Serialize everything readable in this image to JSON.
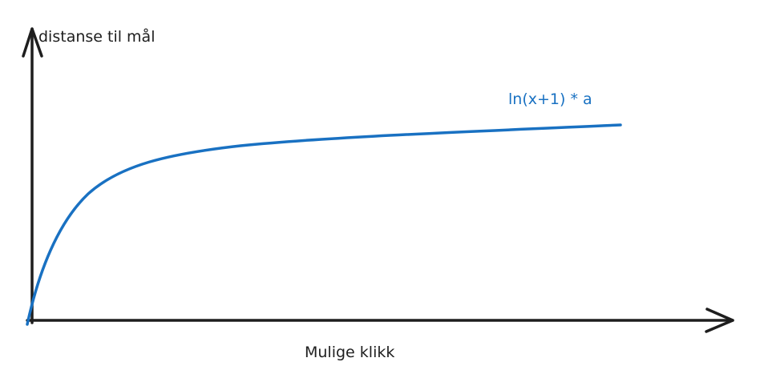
{
  "diagram": {
    "y_axis_label": "distanse til mål",
    "x_axis_label": "Mulige klikk",
    "curve_label": "ln(x+1) * a",
    "colors": {
      "axes": "#1e1e1e",
      "curve": "#1971c2",
      "background": "#ffffff"
    }
  }
}
